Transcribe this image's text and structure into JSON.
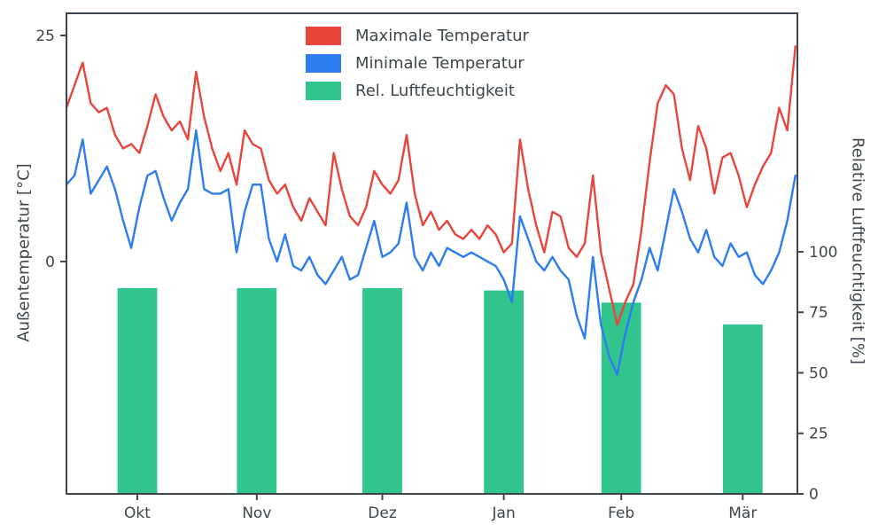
{
  "chart_data": {
    "type": "line+bar",
    "title": "",
    "x_axis": {
      "tick_labels": [
        "Okt",
        "Nov",
        "Dez",
        "Jan",
        "Feb",
        "Mär"
      ],
      "tick_days": [
        17.5,
        47,
        78,
        108,
        137,
        167
      ],
      "range": [
        0,
        180.5
      ]
    },
    "y_left": {
      "label": "Außentemperatur [°C]",
      "ticks": [
        0,
        25
      ],
      "range": [
        -25.7,
        27.45
      ]
    },
    "y_right": {
      "label": "Relative Luftfeuchtigkeit [%]",
      "ticks": [
        0,
        25,
        50,
        75,
        100
      ],
      "range": [
        0,
        198.5
      ]
    },
    "legend_position": "top-center",
    "style": {
      "axis_color": "#3e454e",
      "background": "#ffffff",
      "grid": "off"
    },
    "series": [
      {
        "name": "Maximale Temperatur",
        "type": "line",
        "axis": "left",
        "unit": "°C",
        "color": "#e8453c",
        "x_start_day": 0,
        "x_step_days": 2,
        "values": [
          17,
          19.5,
          22,
          17.5,
          16.5,
          17,
          14,
          12.5,
          13,
          12,
          15,
          18.5,
          16,
          14.5,
          15.5,
          13.5,
          21,
          16,
          12.5,
          10,
          12,
          8.5,
          14.5,
          13,
          12.5,
          9,
          7.5,
          8.5,
          6,
          4.5,
          7,
          5.5,
          4,
          12,
          8,
          5,
          4,
          6,
          10,
          8.5,
          7.5,
          9,
          14,
          7.5,
          4,
          5.5,
          3.5,
          4.5,
          3,
          2.5,
          3.5,
          2.5,
          4,
          3,
          1,
          2,
          13.5,
          8,
          4,
          1,
          5.5,
          5,
          1.5,
          0.5,
          2,
          9.5,
          1,
          -3,
          -7,
          -4.5,
          -2.5,
          3.5,
          11,
          17.5,
          19.5,
          18.5,
          12.5,
          9,
          15,
          12.5,
          7.5,
          11.5,
          12,
          9.5,
          6,
          8.5,
          10.5,
          12,
          17,
          14.5,
          23.8
        ]
      },
      {
        "name": "Minimale Temperatur",
        "type": "line",
        "axis": "left",
        "unit": "°C",
        "color": "#2d7cf0",
        "x_start_day": 0,
        "x_step_days": 2,
        "values": [
          8.5,
          9.5,
          13.5,
          7.5,
          9,
          10.5,
          8,
          4.5,
          1.5,
          6,
          9.5,
          10,
          7,
          4.5,
          6.5,
          8,
          14.5,
          8,
          7.5,
          7.5,
          8,
          1,
          5.5,
          8.5,
          8.5,
          2.5,
          0,
          3,
          -0.5,
          -1,
          0.5,
          -1.5,
          -2.5,
          -1,
          0.5,
          -2,
          -1.5,
          1.5,
          4.5,
          0.5,
          1,
          2,
          6.5,
          0.5,
          -1,
          1,
          -0.5,
          1.5,
          1,
          0.5,
          1,
          0.5,
          0,
          -0.5,
          -2,
          -4.5,
          5,
          2.5,
          0,
          -1,
          0.5,
          -1,
          -2,
          -6,
          -8.5,
          0.5,
          -7,
          -10.5,
          -12.5,
          -8,
          -4.5,
          -2,
          1.5,
          -1,
          3.5,
          8,
          5.5,
          2.5,
          1,
          3.5,
          0.5,
          -0.5,
          2,
          0.5,
          1,
          -1.5,
          -2.5,
          -1,
          1,
          4.5,
          9.5
        ]
      },
      {
        "name": "Rel. Luftfeuchtigkeit",
        "type": "bar",
        "axis": "right",
        "unit": "%",
        "color": "#31c48d",
        "bar_width_days": 9.8,
        "categories": [
          "Okt",
          "Nov",
          "Dez",
          "Jan",
          "Feb",
          "Mär"
        ],
        "values": [
          85,
          85,
          85,
          84,
          79,
          70
        ]
      }
    ]
  }
}
